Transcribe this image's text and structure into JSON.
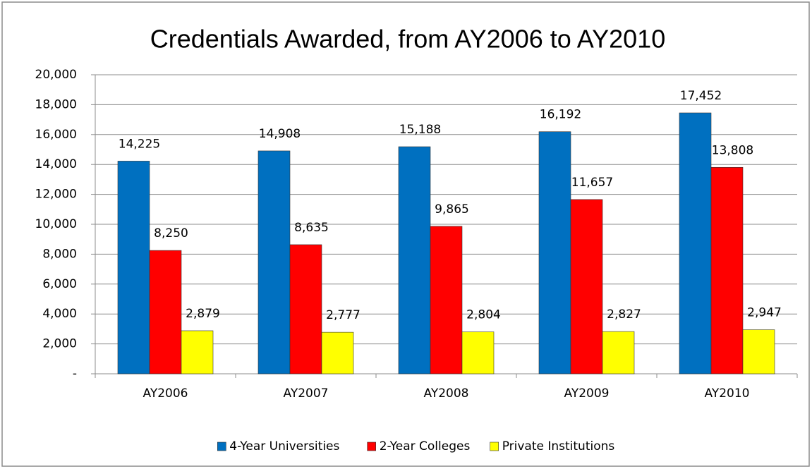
{
  "chart_data": {
    "type": "bar",
    "title": "Credentials Awarded, from AY2006 to AY2010",
    "categories": [
      "AY2006",
      "AY2007",
      "AY2008",
      "AY2009",
      "AY2010"
    ],
    "series": [
      {
        "name": "4-Year Universities",
        "color": "#0070c0",
        "values": [
          14225,
          14908,
          15188,
          16192,
          17452
        ],
        "value_labels": [
          "14,225",
          "14,908",
          "15,188",
          "16,192",
          "17,452"
        ]
      },
      {
        "name": "2-Year Colleges",
        "color": "#ff0000",
        "values": [
          8250,
          8635,
          9865,
          11657,
          13808
        ],
        "value_labels": [
          "8,250",
          "8,635",
          "9,865",
          "11,657",
          "13,808"
        ]
      },
      {
        "name": "Private Institutions",
        "color": "#ffff00",
        "values": [
          2879,
          2777,
          2804,
          2827,
          2947
        ],
        "value_labels": [
          "2,879",
          "2,777",
          "2,804",
          "2,827",
          "2,947"
        ]
      }
    ],
    "ylim": [
      0,
      20000
    ],
    "yticks": [
      {
        "value": 0,
        "label": "-"
      },
      {
        "value": 2000,
        "label": "2,000"
      },
      {
        "value": 4000,
        "label": "4,000"
      },
      {
        "value": 6000,
        "label": "6,000"
      },
      {
        "value": 8000,
        "label": "8,000"
      },
      {
        "value": 10000,
        "label": "10,000"
      },
      {
        "value": 12000,
        "label": "12,000"
      },
      {
        "value": 14000,
        "label": "14,000"
      },
      {
        "value": 16000,
        "label": "16,000"
      },
      {
        "value": 18000,
        "label": "18,000"
      },
      {
        "value": 20000,
        "label": "20,000"
      }
    ],
    "grid": true,
    "legend": "bottom"
  }
}
